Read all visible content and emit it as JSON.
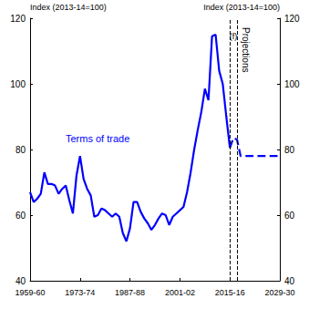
{
  "chart_data": {
    "type": "line",
    "x": [
      1959,
      1960,
      1961,
      1962,
      1963,
      1964,
      1965,
      1966,
      1967,
      1968,
      1969,
      1970,
      1971,
      1972,
      1973,
      1974,
      1975,
      1976,
      1977,
      1978,
      1979,
      1980,
      1981,
      1982,
      1983,
      1984,
      1985,
      1986,
      1987,
      1988,
      1989,
      1990,
      1991,
      1992,
      1993,
      1994,
      1995,
      1996,
      1997,
      1998,
      1999,
      2000,
      2001,
      2002,
      2003,
      2004,
      2005,
      2006,
      2007,
      2008,
      2009,
      2010,
      2011,
      2012,
      2013,
      2014,
      2015,
      2016,
      2017,
      2018,
      2019,
      2020,
      2021,
      2022,
      2023,
      2024,
      2025,
      2026,
      2027,
      2028,
      2029
    ],
    "series": [
      {
        "name": "Terms of trade",
        "color": "#0000ff",
        "line_style": "solid",
        "values": [
          67,
          64,
          65,
          66.5,
          73,
          69.5,
          69.5,
          69,
          66.5,
          68,
          69,
          64.5,
          60.5,
          72,
          78,
          71,
          68,
          66,
          59.5,
          60,
          62,
          61.5,
          60.5,
          59.5,
          60.5,
          59.5,
          54.5,
          52,
          56,
          64,
          64,
          61,
          59,
          57.5,
          55.5,
          57,
          59,
          60.5,
          60,
          57,
          59.5,
          60.5,
          61.5,
          62.5,
          67,
          73,
          80,
          86,
          91.5,
          98.5,
          95,
          114.5,
          115,
          104,
          100,
          90,
          80.5,
          null,
          null,
          null,
          null,
          null,
          null,
          null,
          null,
          null,
          null,
          null,
          null,
          null,
          null
        ]
      },
      {
        "color": "#0000ff",
        "line_style": "dashed",
        "values": [
          null,
          null,
          null,
          null,
          null,
          null,
          null,
          null,
          null,
          null,
          null,
          null,
          null,
          null,
          null,
          null,
          null,
          null,
          null,
          null,
          null,
          null,
          null,
          null,
          null,
          null,
          null,
          null,
          null,
          null,
          null,
          null,
          null,
          null,
          null,
          null,
          null,
          null,
          null,
          null,
          null,
          null,
          null,
          null,
          null,
          null,
          null,
          null,
          null,
          null,
          null,
          null,
          null,
          null,
          null,
          null,
          80.5,
          83.5,
          83,
          78,
          78,
          78,
          78,
          78,
          78,
          78,
          78,
          78,
          78,
          78,
          78
        ]
      }
    ],
    "xlim": [
      1959,
      2029
    ],
    "xticks": [
      {
        "value": 1959,
        "label": "1959-60"
      },
      {
        "value": 1973,
        "label": "1973-74"
      },
      {
        "value": 1987,
        "label": "1987-88"
      },
      {
        "value": 2001,
        "label": "2001-02"
      },
      {
        "value": 2015,
        "label": "2015-16"
      },
      {
        "value": 2029,
        "label": "2029-30"
      }
    ],
    "ylim": [
      40,
      120
    ],
    "yticks": [
      40,
      60,
      80,
      100,
      120
    ],
    "y2lim": [
      40,
      120
    ],
    "y2ticks": [
      40,
      60,
      80,
      100,
      120
    ],
    "ylabel": "Index (2013-14=100)",
    "y2label": "Index (2013-14=100)",
    "grid": false,
    "vlines": [
      2015,
      2017
    ],
    "annotations": [
      {
        "text": "(f)"
      },
      {
        "text": "Projections"
      }
    ]
  }
}
